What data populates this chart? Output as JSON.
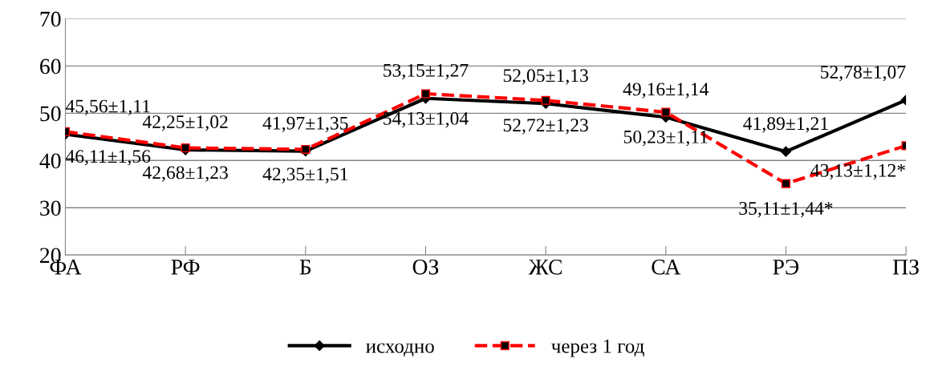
{
  "chart_data": {
    "type": "line",
    "categories": [
      "ФА",
      "РФ",
      "Б",
      "ОЗ",
      "ЖС",
      "СА",
      "РЭ",
      "ПЗ"
    ],
    "series": [
      {
        "name": "исходно",
        "color": "#000000",
        "marker": "diamond",
        "line_style": "solid",
        "values": [
          45.56,
          42.25,
          41.97,
          53.15,
          52.05,
          49.16,
          41.89,
          52.78
        ],
        "value_labels": [
          "45,56±1,11",
          "42,25±1,02",
          "41,97±1,35",
          "53,15±1,27",
          "52,05±1,13",
          "49,16±1,14",
          "41,89±1,21",
          "52,78±1,07"
        ]
      },
      {
        "name": "через 1 год",
        "color": "#ff0000",
        "marker": "square",
        "line_style": "dashed",
        "values": [
          46.11,
          42.68,
          42.35,
          54.13,
          52.72,
          50.23,
          35.11,
          43.13
        ],
        "value_labels": [
          "46,11±1,56",
          "42,68±1,23",
          "42,35±1,51",
          "54,13±1,04",
          "52,72±1,23",
          "50,23±1,11",
          "35,11±1,44*",
          "43,13±1,12*"
        ]
      }
    ],
    "ylim": [
      20,
      70
    ],
    "yticks": [
      20,
      30,
      40,
      50,
      60,
      70
    ],
    "grid": "y",
    "legend": "bottom"
  }
}
